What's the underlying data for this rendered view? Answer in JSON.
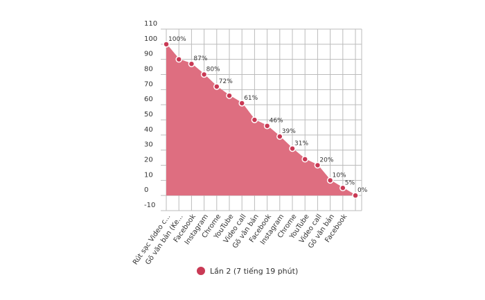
{
  "chart_data": {
    "type": "area",
    "categories": [
      "Rút sạc Video c...",
      "Gõ văn bản (Ke...",
      "Facebook",
      "Instagram",
      "Chrome",
      "YouTube",
      "Video call",
      "Gõ văn bản",
      "Facebook",
      "Instagram",
      "Chrome",
      "YouTube",
      "Video call",
      "Gõ văn bản",
      "Facebook",
      null
    ],
    "series": [
      {
        "name": "Lần 2 (7 tiếng 19 phút)",
        "color": "#c93a55",
        "fill": "#de6e80",
        "values": [
          100,
          90,
          87,
          80,
          72,
          66,
          61,
          50,
          46,
          39,
          31,
          24,
          20,
          10,
          5,
          0
        ],
        "value_labels": [
          "100%",
          null,
          "87%",
          "80%",
          "72%",
          null,
          "61%",
          null,
          "46%",
          "39%",
          "31%",
          null,
          "20%",
          "10%",
          "5%",
          "0%"
        ]
      }
    ],
    "ylim": [
      -10,
      110
    ],
    "yticks": [
      -10,
      0,
      10,
      20,
      30,
      40,
      50,
      60,
      70,
      80,
      90,
      100,
      110
    ],
    "grid": true,
    "legend": "bottom"
  }
}
